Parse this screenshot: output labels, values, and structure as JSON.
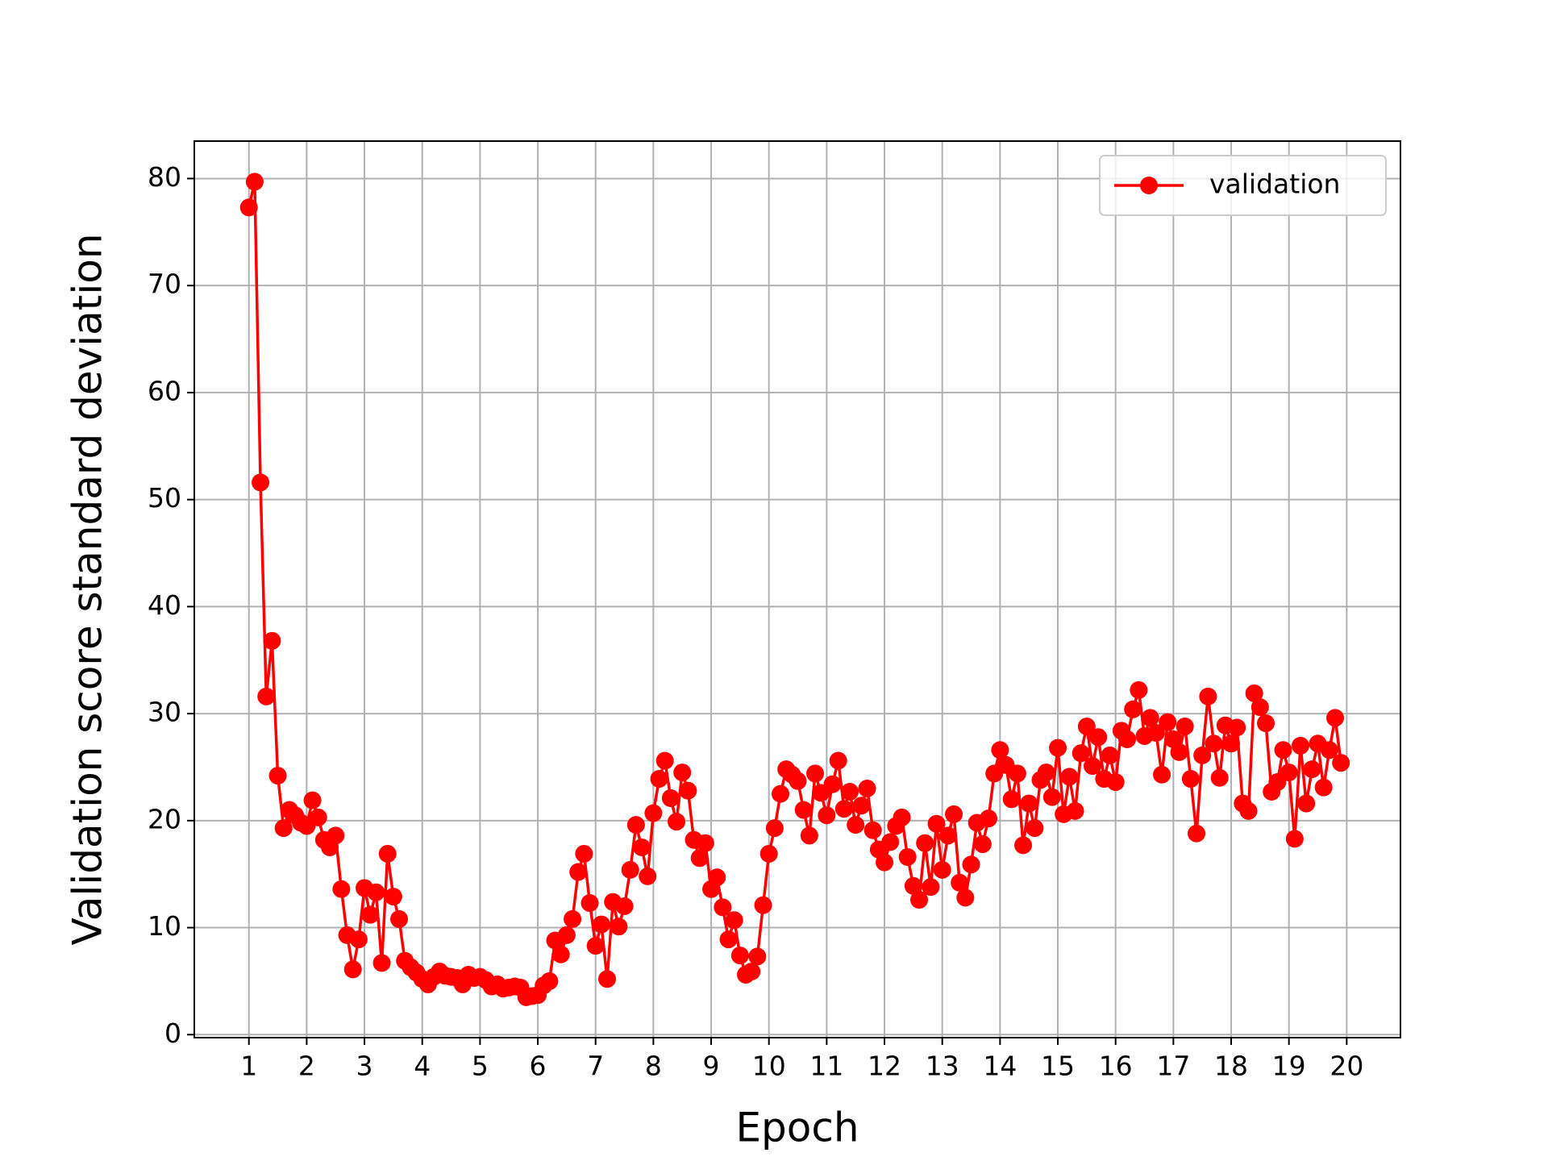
{
  "chart_data": {
    "type": "line",
    "xlabel": "Epoch",
    "ylabel": "Validation score standard deviation",
    "xlim": [
      0.055,
      20.93
    ],
    "ylim": [
      -0.28,
      83.5
    ],
    "xticks": [
      1,
      2,
      3,
      4,
      5,
      6,
      7,
      8,
      9,
      10,
      11,
      12,
      13,
      14,
      15,
      16,
      17,
      18,
      19,
      20
    ],
    "yticks": [
      0,
      10,
      20,
      30,
      40,
      50,
      60,
      70,
      80
    ],
    "grid": true,
    "legend": "upper right",
    "x": [
      1.0,
      1.1,
      1.2,
      1.3,
      1.4,
      1.5,
      1.6,
      1.7,
      1.8,
      1.9,
      2.0,
      2.1,
      2.2,
      2.3,
      2.4,
      2.5,
      2.6,
      2.7,
      2.8,
      2.9,
      3.0,
      3.1,
      3.2,
      3.3,
      3.4,
      3.5,
      3.6,
      3.7,
      3.8,
      3.9,
      4.0,
      4.1,
      4.2,
      4.3,
      4.4,
      4.5,
      4.6,
      4.7,
      4.8,
      4.9,
      5.0,
      5.1,
      5.2,
      5.3,
      5.4,
      5.5,
      5.6,
      5.7,
      5.8,
      5.9,
      6.0,
      6.1,
      6.2,
      6.3,
      6.4,
      6.5,
      6.6,
      6.7,
      6.8,
      6.9,
      7.0,
      7.1,
      7.2,
      7.3,
      7.4,
      7.5,
      7.6,
      7.7,
      7.8,
      7.9,
      8.0,
      8.1,
      8.2,
      8.3,
      8.4,
      8.5,
      8.6,
      8.7,
      8.8,
      8.9,
      9.0,
      9.1,
      9.2,
      9.3,
      9.4,
      9.5,
      9.6,
      9.7,
      9.8,
      9.9,
      10.0,
      10.1,
      10.2,
      10.3,
      10.4,
      10.5,
      10.6,
      10.7,
      10.8,
      10.9,
      11.0,
      11.1,
      11.2,
      11.3,
      11.4,
      11.5,
      11.6,
      11.7,
      11.8,
      11.9,
      12.0,
      12.1,
      12.2,
      12.3,
      12.4,
      12.5,
      12.6,
      12.7,
      12.8,
      12.9,
      13.0,
      13.1,
      13.2,
      13.3,
      13.4,
      13.5,
      13.6,
      13.7,
      13.8,
      13.9,
      14.0,
      14.1,
      14.2,
      14.3,
      14.4,
      14.5,
      14.6,
      14.7,
      14.8,
      14.9,
      15.0,
      15.1,
      15.2,
      15.3,
      15.4,
      15.5,
      15.6,
      15.7,
      15.8,
      15.9,
      16.0,
      16.1,
      16.2,
      16.3,
      16.4,
      16.5,
      16.6,
      16.7,
      16.8,
      16.9,
      17.0,
      17.1,
      17.2,
      17.3,
      17.4,
      17.5,
      17.6,
      17.7,
      17.8,
      17.9,
      18.0,
      18.1,
      18.2,
      18.3,
      18.4,
      18.5,
      18.6,
      18.7,
      18.8,
      18.9,
      19.0,
      19.1,
      19.2,
      19.3,
      19.4,
      19.5,
      19.6,
      19.7,
      19.8,
      19.9
    ],
    "series": [
      {
        "name": "validation",
        "color": "#ff0000",
        "values": [
          77.3,
          79.7,
          51.6,
          31.6,
          36.8,
          24.2,
          19.3,
          21.0,
          20.5,
          19.8,
          19.5,
          21.9,
          20.3,
          18.2,
          17.5,
          18.6,
          13.6,
          9.3,
          6.1,
          8.9,
          13.7,
          11.2,
          13.3,
          6.7,
          16.9,
          12.9,
          10.8,
          6.9,
          6.3,
          5.8,
          5.2,
          4.7,
          5.4,
          5.9,
          5.5,
          5.4,
          5.3,
          4.7,
          5.6,
          5.3,
          5.4,
          5.1,
          4.5,
          4.7,
          4.3,
          4.4,
          4.5,
          4.4,
          3.5,
          3.6,
          3.7,
          4.6,
          5.0,
          8.8,
          7.5,
          9.3,
          10.8,
          15.2,
          16.9,
          12.3,
          8.3,
          10.3,
          5.2,
          12.4,
          10.1,
          12.0,
          15.4,
          19.6,
          17.5,
          14.8,
          20.7,
          23.9,
          25.6,
          22.1,
          19.9,
          24.5,
          22.8,
          18.2,
          16.5,
          17.9,
          13.6,
          14.7,
          11.9,
          8.9,
          10.7,
          7.4,
          5.6,
          5.9,
          7.3,
          12.1,
          16.9,
          19.3,
          22.5,
          24.8,
          24.3,
          23.7,
          21.0,
          18.6,
          24.4,
          22.6,
          20.5,
          23.4,
          25.6,
          21.1,
          22.7,
          19.6,
          21.4,
          23.0,
          19.1,
          17.3,
          16.1,
          18.0,
          19.5,
          20.3,
          16.6,
          13.9,
          12.6,
          17.9,
          13.8,
          19.7,
          15.4,
          18.6,
          20.6,
          14.2,
          12.8,
          15.9,
          19.8,
          17.8,
          20.2,
          24.4,
          26.6,
          25.2,
          22.0,
          24.4,
          17.7,
          21.6,
          19.3,
          23.8,
          24.5,
          22.2,
          26.8,
          20.6,
          24.1,
          20.9,
          26.3,
          28.8,
          25.1,
          27.8,
          23.9,
          26.1,
          23.6,
          28.4,
          27.6,
          30.4,
          32.2,
          27.9,
          29.6,
          28.2,
          24.3,
          29.2,
          27.6,
          26.4,
          28.8,
          23.9,
          18.8,
          26.1,
          31.6,
          27.2,
          24.0,
          28.9,
          27.2,
          28.7,
          21.6,
          20.9,
          31.9,
          30.6,
          29.1,
          22.7,
          23.6,
          26.6,
          24.5,
          18.3,
          27.0,
          21.6,
          24.8,
          27.2,
          23.1,
          26.6,
          29.6,
          25.4
        ]
      }
    ]
  }
}
